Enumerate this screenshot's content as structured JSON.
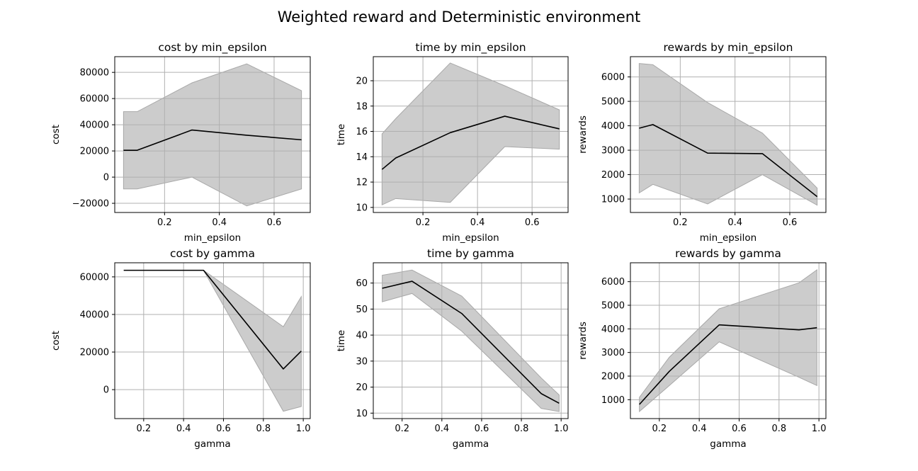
{
  "figure": {
    "suptitle": "Weighted reward and Deterministic environment"
  },
  "chart_data": [
    {
      "id": "cost-min-epsilon",
      "type": "line",
      "title": "cost by min_epsilon",
      "xlabel": "min_epsilon",
      "ylabel": "cost",
      "xlim": [
        0.018,
        0.732
      ],
      "ylim": [
        -27000,
        92000
      ],
      "xticks": [
        0.2,
        0.4,
        0.6
      ],
      "xtick_labels": [
        "0.2",
        "0.4",
        "0.6"
      ],
      "yticks": [
        -20000,
        0,
        20000,
        40000,
        60000,
        80000
      ],
      "ytick_labels": [
        "−20000",
        "0",
        "20000",
        "40000",
        "60000",
        "80000"
      ],
      "grid": true,
      "x": [
        0.05,
        0.1,
        0.3,
        0.5,
        0.7
      ],
      "mean": [
        20500,
        20500,
        36000,
        32000,
        28500
      ],
      "lower": [
        -9000,
        -9000,
        0,
        -22000,
        -9000
      ],
      "upper": [
        50000,
        50000,
        72000,
        86500,
        66000
      ]
    },
    {
      "id": "time-min-epsilon",
      "type": "line",
      "title": "time by min_epsilon",
      "xlabel": "min_epsilon",
      "ylabel": "time",
      "xlim": [
        0.018,
        0.732
      ],
      "ylim": [
        9.6,
        21.9
      ],
      "xticks": [
        0.2,
        0.4,
        0.6
      ],
      "xtick_labels": [
        "0.2",
        "0.4",
        "0.6"
      ],
      "yticks": [
        10,
        12,
        14,
        16,
        18,
        20
      ],
      "ytick_labels": [
        "10",
        "12",
        "14",
        "16",
        "18",
        "20"
      ],
      "grid": true,
      "x": [
        0.05,
        0.1,
        0.3,
        0.5,
        0.7
      ],
      "mean": [
        13.0,
        13.9,
        15.9,
        17.2,
        16.2
      ],
      "lower": [
        10.2,
        10.7,
        10.4,
        14.8,
        14.6
      ],
      "upper": [
        15.8,
        17.0,
        21.4,
        19.6,
        17.7
      ]
    },
    {
      "id": "rewards-min-epsilon",
      "type": "line",
      "title": "rewards by min_epsilon",
      "xlabel": "min_epsilon",
      "ylabel": "rewards",
      "xlim": [
        0.018,
        0.732
      ],
      "ylim": [
        450,
        6830
      ],
      "xticks": [
        0.2,
        0.4,
        0.6
      ],
      "xtick_labels": [
        "0.2",
        "0.4",
        "0.6"
      ],
      "yticks": [
        1000,
        2000,
        3000,
        4000,
        5000,
        6000
      ],
      "ytick_labels": [
        "1000",
        "2000",
        "3000",
        "4000",
        "5000",
        "6000"
      ],
      "grid": true,
      "x": [
        0.05,
        0.1,
        0.3,
        0.5,
        0.7
      ],
      "mean": [
        3900,
        4050,
        2880,
        2860,
        1100
      ],
      "lower": [
        1250,
        1600,
        800,
        2000,
        750
      ],
      "upper": [
        6550,
        6500,
        4950,
        3700,
        1450
      ]
    },
    {
      "id": "cost-gamma",
      "type": "line",
      "title": "cost by gamma",
      "xlabel": "gamma",
      "ylabel": "cost",
      "xlim": [
        0.055,
        1.035
      ],
      "ylim": [
        -15400,
        67500
      ],
      "xticks": [
        0.2,
        0.4,
        0.6,
        0.8,
        1.0
      ],
      "xtick_labels": [
        "0.2",
        "0.4",
        "0.6",
        "0.8",
        "1.0"
      ],
      "yticks": [
        0,
        20000,
        40000,
        60000
      ],
      "ytick_labels": [
        "0",
        "20000",
        "40000",
        "60000"
      ],
      "grid": true,
      "x": [
        0.1,
        0.25,
        0.5,
        0.9,
        0.99
      ],
      "mean": [
        63500,
        63500,
        63500,
        11000,
        20500
      ],
      "lower": [
        63500,
        63500,
        63500,
        -11500,
        -9000
      ],
      "upper": [
        63500,
        63500,
        63500,
        33500,
        49500
      ]
    },
    {
      "id": "time-gamma",
      "type": "line",
      "title": "time by gamma",
      "xlabel": "gamma",
      "ylabel": "time",
      "xlim": [
        0.055,
        1.035
      ],
      "ylim": [
        7.9,
        67.8
      ],
      "xticks": [
        0.2,
        0.4,
        0.6,
        0.8,
        1.0
      ],
      "xtick_labels": [
        "0.2",
        "0.4",
        "0.6",
        "0.8",
        "1.0"
      ],
      "yticks": [
        10,
        20,
        30,
        40,
        50,
        60
      ],
      "ytick_labels": [
        "10",
        "20",
        "30",
        "40",
        "50",
        "60"
      ],
      "grid": true,
      "x": [
        0.1,
        0.25,
        0.5,
        0.9,
        0.99
      ],
      "mean": [
        58.0,
        60.7,
        48.3,
        17.5,
        13.8
      ],
      "lower": [
        52.8,
        56.0,
        41.5,
        11.8,
        10.6
      ],
      "upper": [
        63.0,
        65.0,
        55.0,
        23.5,
        17.0
      ]
    },
    {
      "id": "rewards-gamma",
      "type": "line",
      "title": "rewards by gamma",
      "xlabel": "gamma",
      "ylabel": "rewards",
      "xlim": [
        0.055,
        1.035
      ],
      "ylim": [
        200,
        6800
      ],
      "xticks": [
        0.2,
        0.4,
        0.6,
        0.8,
        1.0
      ],
      "xtick_labels": [
        "0.2",
        "0.4",
        "0.6",
        "0.8",
        "1.0"
      ],
      "yticks": [
        1000,
        2000,
        3000,
        4000,
        5000,
        6000
      ],
      "ytick_labels": [
        "1000",
        "2000",
        "3000",
        "4000",
        "5000",
        "6000"
      ],
      "grid": true,
      "x": [
        0.1,
        0.25,
        0.5,
        0.9,
        0.99
      ],
      "mean": [
        800,
        2200,
        4170,
        3960,
        4050
      ],
      "lower": [
        500,
        1600,
        3450,
        1950,
        1600
      ],
      "upper": [
        1100,
        2800,
        4850,
        5950,
        6500
      ]
    }
  ],
  "style": {
    "line_color": "#000000",
    "band_color": "#cccccc",
    "band_edge_color": "#a8a8a8",
    "grid_color": "#b0b0b0",
    "axis_color": "#000000"
  }
}
